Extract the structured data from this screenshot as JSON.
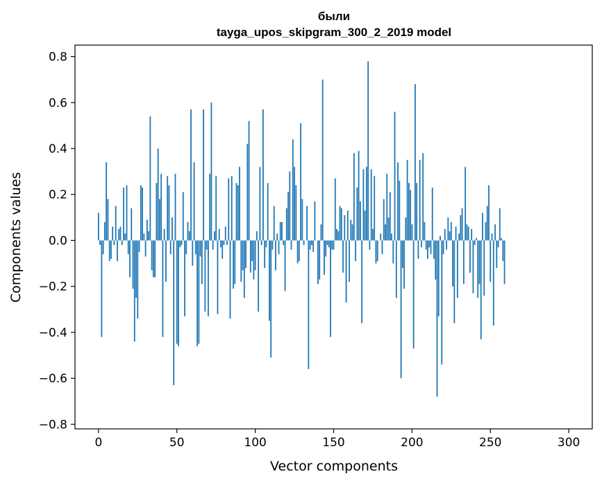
{
  "chart_data": {
    "type": "bar",
    "title_line1": "были",
    "title_line2": "tayga_upos_skipgram_300_2_2019 model",
    "xlabel": "Vector components",
    "ylabel": "Components values",
    "xlim": [
      -15,
      315
    ],
    "ylim": [
      -0.82,
      0.85
    ],
    "xticks": [
      0,
      50,
      100,
      150,
      200,
      250,
      300
    ],
    "xtick_labels": [
      "0",
      "50",
      "100",
      "150",
      "200",
      "250",
      "300"
    ],
    "yticks": [
      -0.8,
      -0.6,
      -0.4,
      -0.2,
      0.0,
      0.2,
      0.4,
      0.6,
      0.8
    ],
    "ytick_labels": [
      "−0.8",
      "−0.6",
      "−0.4",
      "−0.2",
      "0.0",
      "0.2",
      "0.4",
      "0.6",
      "0.8"
    ],
    "bar_color": "#1f77b4",
    "values": [
      0.12,
      -0.02,
      -0.42,
      -0.06,
      0.08,
      0.34,
      0.18,
      -0.09,
      -0.08,
      0.06,
      -0.02,
      0.15,
      -0.09,
      0.05,
      0.06,
      -0.02,
      0.23,
      0.03,
      0.24,
      -0.06,
      -0.16,
      0.14,
      -0.21,
      -0.44,
      -0.25,
      -0.34,
      -0.05,
      0.24,
      0.23,
      0.03,
      -0.07,
      0.09,
      0.04,
      0.54,
      -0.13,
      -0.16,
      -0.16,
      0.25,
      0.4,
      0.18,
      0.29,
      -0.42,
      0.05,
      -0.18,
      0.28,
      0.24,
      -0.06,
      0.1,
      -0.63,
      0.29,
      -0.45,
      -0.46,
      -0.03,
      -0.02,
      0.21,
      -0.33,
      -0.06,
      0.08,
      0.04,
      0.57,
      -0.11,
      0.34,
      -0.06,
      -0.46,
      -0.45,
      -0.07,
      -0.19,
      0.57,
      -0.31,
      -0.04,
      -0.33,
      0.29,
      0.6,
      -0.04,
      0.04,
      0.28,
      -0.32,
      0.05,
      -0.03,
      -0.08,
      -0.02,
      0.06,
      -0.02,
      0.27,
      -0.34,
      0.28,
      -0.21,
      -0.19,
      0.25,
      0.24,
      0.32,
      -0.18,
      -0.13,
      -0.25,
      -0.12,
      0.42,
      0.52,
      -0.14,
      -0.09,
      -0.17,
      -0.13,
      0.04,
      -0.31,
      0.32,
      -0.02,
      0.57,
      -0.12,
      -0.03,
      0.25,
      -0.35,
      -0.51,
      -0.04,
      0.15,
      -0.13,
      0.03,
      -0.06,
      0.08,
      0.08,
      -0.02,
      -0.22,
      0.14,
      0.21,
      0.3,
      -0.04,
      0.44,
      0.32,
      0.24,
      -0.1,
      -0.09,
      0.51,
      0.18,
      -0.02,
      0.0,
      0.15,
      -0.56,
      -0.04,
      -0.02,
      -0.05,
      0.17,
      0.0,
      -0.19,
      -0.17,
      0.07,
      0.7,
      -0.15,
      -0.07,
      -0.02,
      -0.03,
      -0.42,
      -0.04,
      -0.04,
      0.27,
      0.05,
      0.04,
      0.15,
      0.14,
      -0.14,
      0.11,
      -0.27,
      0.13,
      -0.18,
      0.09,
      0.07,
      0.38,
      -0.09,
      0.23,
      0.39,
      0.17,
      -0.36,
      0.31,
      0.13,
      0.32,
      0.78,
      -0.04,
      0.31,
      0.05,
      0.28,
      -0.1,
      -0.09,
      0.0,
      0.03,
      -0.06,
      0.18,
      0.07,
      0.29,
      0.1,
      0.21,
      0.03,
      -0.1,
      0.56,
      -0.25,
      0.34,
      0.26,
      -0.6,
      -0.12,
      -0.21,
      0.1,
      0.35,
      0.25,
      0.22,
      0.07,
      -0.47,
      0.68,
      0.25,
      -0.08,
      0.35,
      -0.03,
      0.38,
      0.08,
      -0.04,
      -0.08,
      -0.03,
      -0.06,
      0.23,
      -0.08,
      -0.17,
      -0.68,
      -0.33,
      0.02,
      -0.54,
      -0.06,
      0.05,
      -0.04,
      0.1,
      0.04,
      0.08,
      -0.2,
      -0.36,
      0.06,
      -0.25,
      0.03,
      0.11,
      0.14,
      -0.19,
      0.32,
      0.07,
      0.06,
      -0.14,
      0.05,
      -0.23,
      -0.02,
      0.01,
      -0.25,
      -0.19,
      -0.43,
      0.12,
      -0.24,
      0.08,
      0.15,
      0.24,
      -0.18,
      0.03,
      -0.37,
      0.07,
      -0.12,
      -0.03,
      0.14,
      0.01,
      -0.09,
      -0.19
    ]
  }
}
